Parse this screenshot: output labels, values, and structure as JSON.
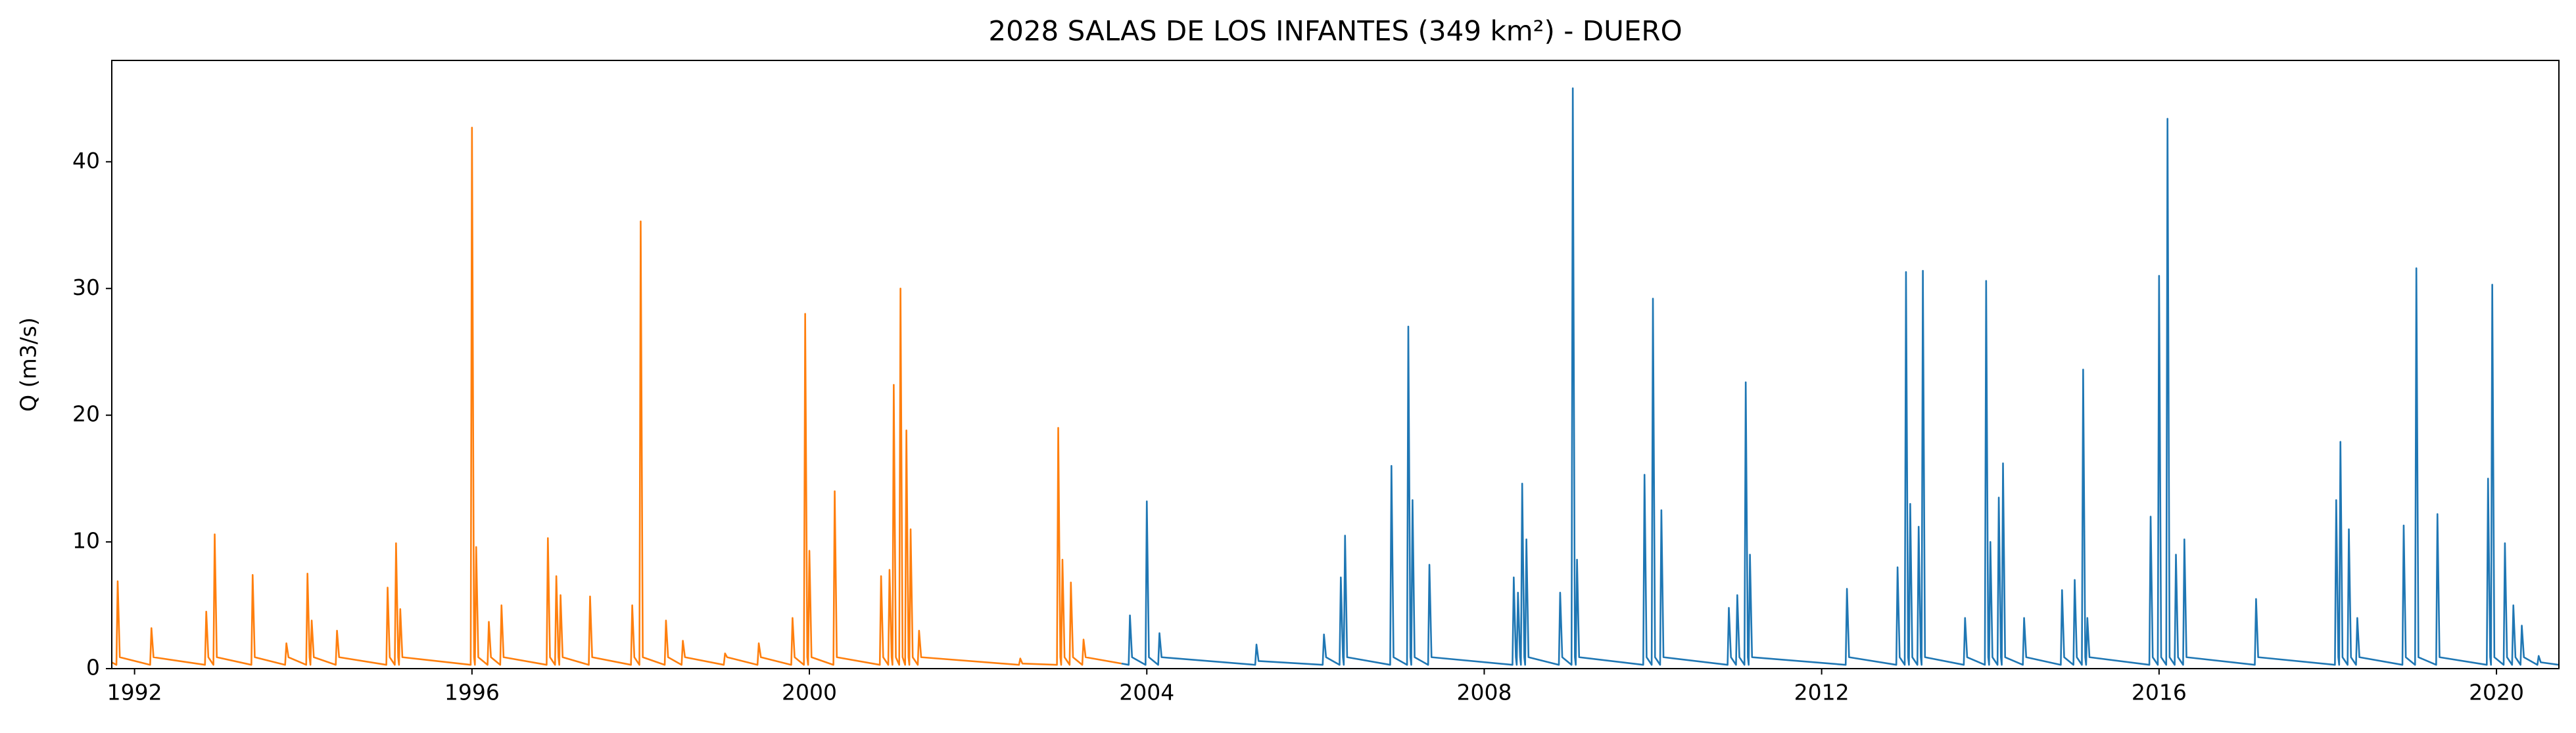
{
  "chart_data": {
    "type": "line",
    "title": "2028 SALAS DE LOS INFANTES (349 km²) - DUERO",
    "y_label": "Q (m3/s)",
    "xlim": [
      1991.73,
      2020.74
    ],
    "xticks": [
      1992,
      1996,
      2000,
      2004,
      2008,
      2012,
      2016,
      2020
    ],
    "ylim": [
      0,
      48
    ],
    "yticks": [
      0,
      10,
      20,
      30,
      40
    ],
    "series": [
      {
        "color": "#ff7f0e",
        "x": [
          1991.73,
          1991.785,
          1991.8,
          1991.825,
          1992.185,
          1992.2,
          1992.225,
          1992.835,
          1992.85,
          1992.875,
          1992.935,
          1992.95,
          1992.975,
          1993.385,
          1993.4,
          1993.425,
          1993.785,
          1993.8,
          1993.825,
          1994.035,
          1994.05,
          1994.075,
          1994.085,
          1994.1,
          1994.125,
          1994.385,
          1994.4,
          1994.425,
          1994.985,
          1995.0,
          1995.025,
          1995.085,
          1995.1,
          1995.125,
          1995.135,
          1995.15,
          1995.175,
          1995.985,
          1996.0,
          1996.025,
          1996.035,
          1996.05,
          1996.075,
          1996.185,
          1996.2,
          1996.225,
          1996.335,
          1996.35,
          1996.375,
          1996.885,
          1996.9,
          1996.925,
          1996.985,
          1997.0,
          1997.025,
          1997.035,
          1997.05,
          1997.075,
          1997.385,
          1997.4,
          1997.425,
          1997.885,
          1997.9,
          1997.925,
          1997.985,
          1998.0,
          1998.025,
          1998.285,
          1998.3,
          1998.325,
          1998.485,
          1998.5,
          1998.525,
          1998.985,
          1999.0,
          1999.025,
          1999.385,
          1999.4,
          1999.425,
          1999.785,
          1999.8,
          1999.825,
          1999.935,
          1999.95,
          1999.975,
          1999.985,
          2000.0,
          2000.025,
          2000.285,
          2000.3,
          2000.325,
          2000.835,
          2000.85,
          2000.875,
          2000.935,
          2000.95,
          2000.975,
          2000.985,
          2001.0,
          2001.025,
          2001.065,
          2001.08,
          2001.105,
          2001.135,
          2001.15,
          2001.175,
          2001.185,
          2001.2,
          2001.225,
          2001.285,
          2001.3,
          2001.325,
          2002.485,
          2002.5,
          2002.525,
          2002.935,
          2002.95,
          2002.975,
          2002.985,
          2003.0,
          2003.025,
          2003.085,
          2003.1,
          2003.125,
          2003.235,
          2003.25,
          2003.275,
          2003.7
        ],
        "values": [
          0.5,
          0.3,
          6.9,
          0.9,
          0.3,
          3.2,
          0.9,
          0.3,
          4.5,
          0.9,
          0.3,
          10.6,
          0.9,
          0.3,
          7.4,
          0.9,
          0.3,
          2,
          0.9,
          0.3,
          7.5,
          0.9,
          0.3,
          3.8,
          0.9,
          0.3,
          3,
          0.9,
          0.3,
          6.4,
          0.9,
          0.3,
          9.9,
          0.9,
          0.3,
          4.7,
          0.9,
          0.3,
          42.7,
          0.9,
          0.3,
          9.6,
          0.9,
          0.3,
          3.7,
          0.9,
          0.3,
          5,
          0.9,
          0.3,
          10.3,
          0.9,
          0.3,
          7.3,
          0.9,
          0.3,
          5.8,
          0.9,
          0.3,
          5.7,
          0.9,
          0.3,
          5,
          0.9,
          0.3,
          35.3,
          0.9,
          0.3,
          3.8,
          0.9,
          0.3,
          2.2,
          0.9,
          0.3,
          1.2,
          0.9,
          0.3,
          2,
          0.9,
          0.3,
          4,
          0.9,
          0.3,
          28,
          0.9,
          0.3,
          9.3,
          0.9,
          0.3,
          14,
          0.9,
          0.3,
          7.3,
          0.9,
          0.3,
          7.8,
          0.9,
          0.3,
          22.4,
          0.9,
          0.3,
          30,
          0.9,
          0.3,
          18.8,
          0.9,
          0.3,
          11,
          0.9,
          0.3,
          3,
          0.9,
          0.3,
          0.8,
          0.4,
          0.3,
          19,
          0.9,
          0.3,
          8.6,
          0.9,
          0.3,
          6.8,
          0.9,
          0.3,
          2.3,
          0.9,
          0.4
        ]
      },
      {
        "color": "#1f77b4",
        "x": [
          2003.7,
          2003.785,
          2003.8,
          2003.825,
          2003.985,
          2004.0,
          2004.025,
          2004.135,
          2004.15,
          2004.175,
          2005.285,
          2005.3,
          2005.325,
          2006.085,
          2006.1,
          2006.125,
          2006.285,
          2006.3,
          2006.325,
          2006.335,
          2006.35,
          2006.375,
          2006.885,
          2006.9,
          2006.925,
          2007.085,
          2007.1,
          2007.125,
          2007.135,
          2007.15,
          2007.175,
          2007.335,
          2007.35,
          2007.375,
          2008.335,
          2008.35,
          2008.375,
          2008.385,
          2008.4,
          2008.425,
          2008.435,
          2008.45,
          2008.475,
          2008.485,
          2008.5,
          2008.525,
          2008.885,
          2008.9,
          2008.925,
          2009.035,
          2009.05,
          2009.075,
          2009.085,
          2009.1,
          2009.125,
          2009.885,
          2009.9,
          2009.925,
          2009.985,
          2010.0,
          2010.025,
          2010.085,
          2010.1,
          2010.125,
          2010.885,
          2010.9,
          2010.925,
          2010.985,
          2011.0,
          2011.025,
          2011.085,
          2011.1,
          2011.125,
          2011.135,
          2011.15,
          2011.175,
          2012.285,
          2012.3,
          2012.325,
          2012.885,
          2012.9,
          2012.925,
          2012.985,
          2013.0,
          2013.025,
          2013.035,
          2013.05,
          2013.075,
          2013.135,
          2013.15,
          2013.175,
          2013.185,
          2013.2,
          2013.225,
          2013.685,
          2013.7,
          2013.725,
          2013.935,
          2013.95,
          2013.975,
          2013.985,
          2014.0,
          2014.025,
          2014.085,
          2014.1,
          2014.125,
          2014.135,
          2014.15,
          2014.175,
          2014.385,
          2014.4,
          2014.425,
          2014.835,
          2014.85,
          2014.875,
          2014.985,
          2015.0,
          2015.025,
          2015.085,
          2015.1,
          2015.125,
          2015.135,
          2015.15,
          2015.175,
          2015.885,
          2015.9,
          2015.925,
          2015.985,
          2016.0,
          2016.025,
          2016.085,
          2016.1,
          2016.125,
          2016.185,
          2016.2,
          2016.225,
          2016.285,
          2016.3,
          2016.325,
          2017.135,
          2017.15,
          2017.175,
          2018.085,
          2018.1,
          2018.125,
          2018.135,
          2018.15,
          2018.175,
          2018.235,
          2018.25,
          2018.275,
          2018.335,
          2018.35,
          2018.375,
          2018.885,
          2018.9,
          2018.925,
          2019.035,
          2019.05,
          2019.075,
          2019.285,
          2019.3,
          2019.325,
          2019.885,
          2019.9,
          2019.925,
          2019.935,
          2019.95,
          2019.975,
          2020.085,
          2020.1,
          2020.125,
          2020.185,
          2020.2,
          2020.225,
          2020.285,
          2020.3,
          2020.325,
          2020.485,
          2020.5,
          2020.525,
          2020.74
        ],
        "values": [
          0.4,
          0.3,
          4.2,
          0.9,
          0.3,
          13.2,
          0.9,
          0.3,
          2.8,
          0.9,
          0.3,
          1.9,
          0.6,
          0.3,
          2.7,
          0.9,
          0.3,
          7.2,
          0.9,
          0.3,
          10.5,
          0.9,
          0.3,
          16,
          0.9,
          0.3,
          27,
          0.9,
          0.3,
          13.3,
          0.9,
          0.3,
          8.2,
          0.9,
          0.3,
          7.2,
          0.9,
          0.3,
          6,
          0.9,
          0.3,
          14.6,
          0.9,
          0.3,
          10.2,
          0.9,
          0.3,
          6,
          0.9,
          0.3,
          45.8,
          0.9,
          0.3,
          8.6,
          0.9,
          0.3,
          15.3,
          0.9,
          0.3,
          29.2,
          0.9,
          0.3,
          12.5,
          0.9,
          0.3,
          4.8,
          0.9,
          0.3,
          5.8,
          0.9,
          0.3,
          22.6,
          0.9,
          0.3,
          9,
          0.9,
          0.3,
          6.3,
          0.9,
          0.3,
          8,
          0.9,
          0.3,
          31.3,
          0.9,
          0.3,
          13,
          0.9,
          0.3,
          11.2,
          0.9,
          0.3,
          31.4,
          0.9,
          0.3,
          4,
          0.9,
          0.3,
          30.6,
          0.9,
          0.3,
          10,
          0.9,
          0.3,
          13.5,
          0.9,
          0.3,
          16.2,
          0.9,
          0.3,
          4,
          0.9,
          0.3,
          6.2,
          0.9,
          0.3,
          7,
          0.9,
          0.3,
          23.6,
          0.9,
          0.3,
          4,
          0.9,
          0.3,
          12,
          0.9,
          0.3,
          31,
          0.9,
          0.3,
          43.4,
          0.9,
          0.3,
          9,
          0.9,
          0.3,
          10.2,
          0.9,
          0.3,
          5.5,
          0.9,
          0.3,
          13.3,
          0.9,
          0.3,
          17.9,
          0.9,
          0.3,
          11,
          0.9,
          0.3,
          4,
          0.9,
          0.3,
          11.3,
          0.9,
          0.3,
          31.6,
          0.9,
          0.3,
          12.2,
          0.9,
          0.3,
          15,
          0.9,
          0.3,
          30.3,
          0.9,
          0.3,
          9.9,
          0.9,
          0.3,
          5,
          0.9,
          0.3,
          3.4,
          0.9,
          0.3,
          1,
          0.5,
          0.3
        ]
      }
    ]
  }
}
